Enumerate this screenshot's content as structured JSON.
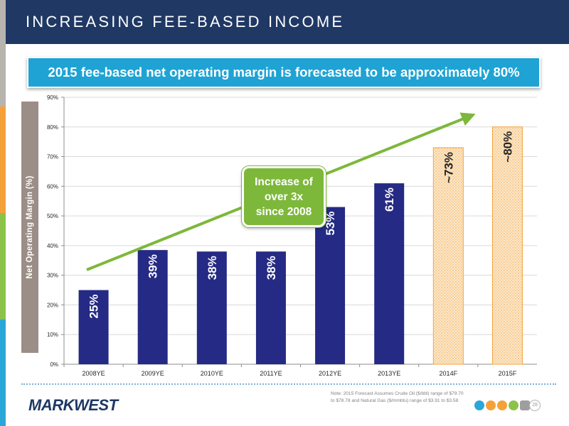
{
  "header": {
    "title": "INCREASING FEE-BASED INCOME"
  },
  "banner": {
    "text": "2015 fee-based net operating margin is forecasted to be approximately 80%"
  },
  "side_strip_colors": [
    "#b7b3af",
    "#f5a13a",
    "#8bc34a",
    "#2aa7d8"
  ],
  "callout": {
    "lines": [
      "Increase of",
      "over 3x",
      "since 2008"
    ]
  },
  "chart_data": {
    "type": "bar",
    "ylabel": "Net Operating Margin (%)",
    "ylim": [
      0,
      90
    ],
    "yticks": [
      "0%",
      "10%",
      "20%",
      "30%",
      "40%",
      "50%",
      "60%",
      "70%",
      "80%",
      "90%"
    ],
    "grid": true,
    "categories": [
      "2008YE",
      "2009YE",
      "2010YE",
      "2011YE",
      "2012YE",
      "2013YE",
      "2014F",
      "2015F"
    ],
    "values": [
      25,
      38.5,
      38,
      38,
      53,
      61,
      73,
      80
    ],
    "data_labels": [
      "25%",
      "39%",
      "38%",
      "38%",
      "53%",
      "61%",
      "~73%",
      "~80%"
    ],
    "forecast": [
      false,
      false,
      false,
      false,
      false,
      false,
      true,
      true
    ],
    "colors": {
      "actual": "#252a84",
      "forecast_fill": "#fbe8cc",
      "forecast_dots": "#f5a33a",
      "trend": "#7db83a"
    }
  },
  "footer": {
    "logo": "MARKWEST",
    "note_lines": [
      "Note: 2015 Forecast Assumes Crude Oil ($/bbl) range of $79.70",
      "to $78.78 and Natural Gas ($/mmbtu) range of $3.91  to $3.58"
    ],
    "page_number": "28",
    "icons": [
      {
        "name": "oil-icon",
        "color": "#2aa7d8"
      },
      {
        "name": "gas-icon",
        "color": "#f5a13a"
      },
      {
        "name": "fuel-icon",
        "color": "#f5a13a"
      },
      {
        "name": "leaf-icon",
        "color": "#8bc34a"
      },
      {
        "name": "ngl-icon",
        "color": "#9e9e9e"
      }
    ]
  }
}
